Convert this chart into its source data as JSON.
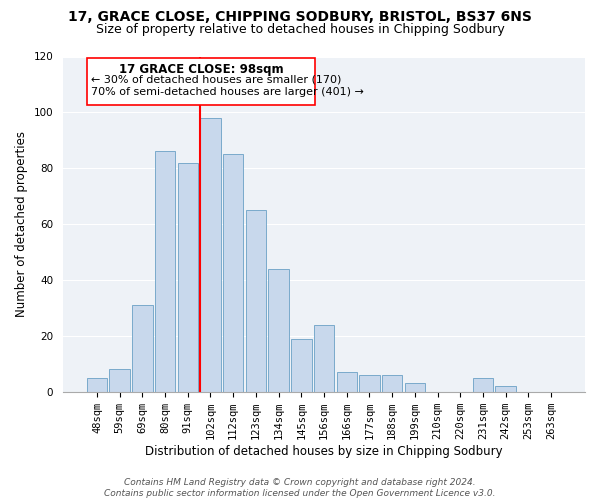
{
  "title": "17, GRACE CLOSE, CHIPPING SODBURY, BRISTOL, BS37 6NS",
  "subtitle": "Size of property relative to detached houses in Chipping Sodbury",
  "xlabel": "Distribution of detached houses by size in Chipping Sodbury",
  "ylabel": "Number of detached properties",
  "footer_line1": "Contains HM Land Registry data © Crown copyright and database right 2024.",
  "footer_line2": "Contains public sector information licensed under the Open Government Licence v3.0.",
  "annotation_title": "17 GRACE CLOSE: 98sqm",
  "annotation_line1": "← 30% of detached houses are smaller (170)",
  "annotation_line2": "70% of semi-detached houses are larger (401) →",
  "bar_labels": [
    "48sqm",
    "59sqm",
    "69sqm",
    "80sqm",
    "91sqm",
    "102sqm",
    "112sqm",
    "123sqm",
    "134sqm",
    "145sqm",
    "156sqm",
    "166sqm",
    "177sqm",
    "188sqm",
    "199sqm",
    "210sqm",
    "220sqm",
    "231sqm",
    "242sqm",
    "253sqm",
    "263sqm"
  ],
  "bar_values": [
    5,
    8,
    31,
    86,
    82,
    98,
    85,
    65,
    44,
    19,
    24,
    7,
    6,
    6,
    3,
    0,
    0,
    5,
    2,
    0,
    0
  ],
  "bar_color": "#c8d8ec",
  "bar_edge_color": "#7aaacb",
  "red_line_index": 5,
  "ylim": [
    0,
    120
  ],
  "yticks": [
    0,
    20,
    40,
    60,
    80,
    100,
    120
  ],
  "title_fontsize": 10,
  "subtitle_fontsize": 9,
  "axis_label_fontsize": 8.5,
  "tick_fontsize": 7.5,
  "annotation_title_fontsize": 8.5,
  "annotation_text_fontsize": 8,
  "footer_fontsize": 6.5,
  "bg_color": "#eef2f7",
  "grid_color": "#ffffff"
}
